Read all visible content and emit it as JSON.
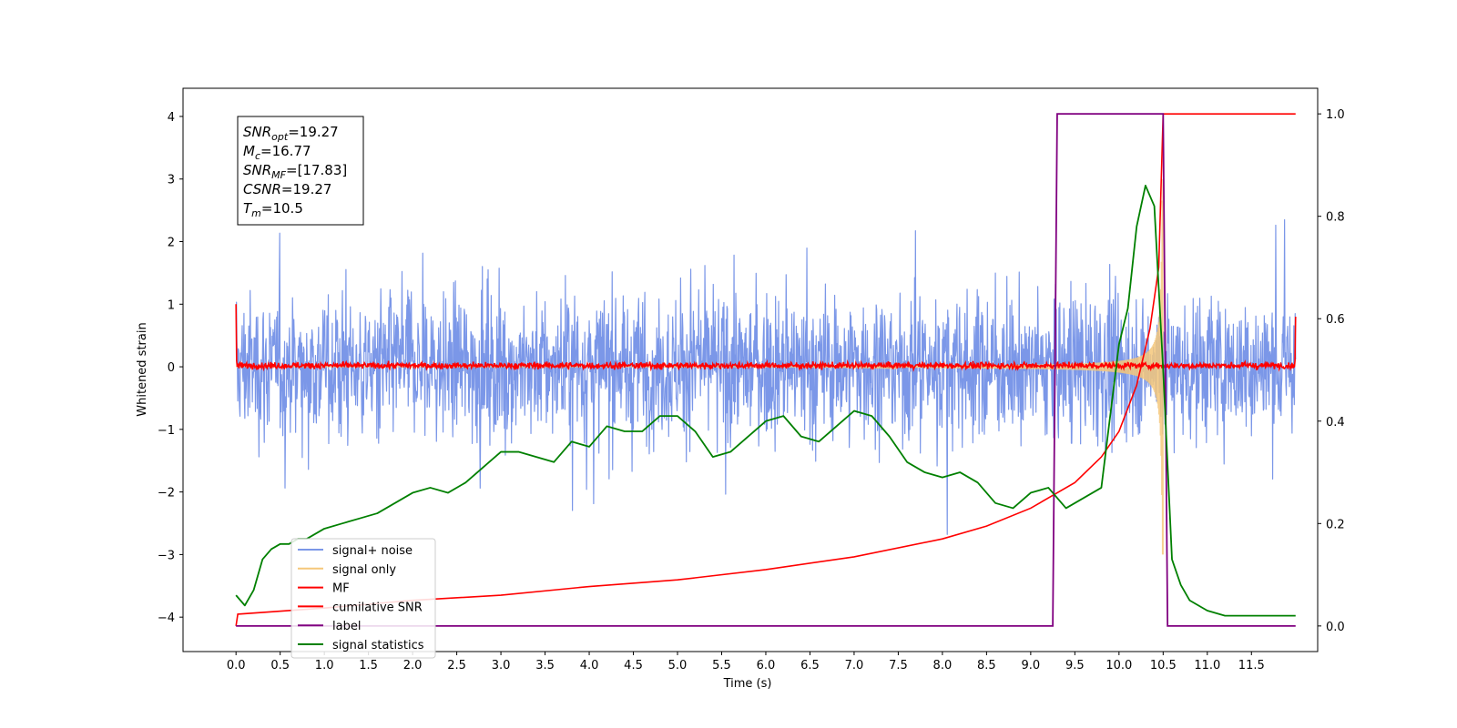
{
  "chart_data": {
    "type": "line",
    "title": "",
    "xlabel": "Time (s)",
    "ylabel": "Whitened strain",
    "xlim": [
      -0.6,
      12.25
    ],
    "ylim": [
      -4.55,
      4.45
    ],
    "y2lim": [
      -0.05,
      1.05
    ],
    "xticks": [
      0.0,
      0.5,
      1.0,
      1.5,
      2.0,
      2.5,
      3.0,
      3.5,
      4.0,
      4.5,
      5.0,
      5.5,
      6.0,
      6.5,
      7.0,
      7.5,
      8.0,
      8.5,
      9.0,
      9.5,
      10.0,
      10.5,
      11.0,
      11.5
    ],
    "xtick_labels": [
      "0.0",
      "0.5",
      "1.0",
      "1.5",
      "2.0",
      "2.5",
      "3.0",
      "3.5",
      "4.0",
      "4.5",
      "5.0",
      "5.5",
      "6.0",
      "6.5",
      "7.0",
      "7.5",
      "8.0",
      "8.5",
      "9.0",
      "9.5",
      "10.0",
      "10.5",
      "11.0",
      "11.5"
    ],
    "yticks": [
      -4,
      -3,
      -2,
      -1,
      0,
      1,
      2,
      3,
      4
    ],
    "ytick_labels": [
      "−4",
      "−3",
      "−2",
      "−1",
      "0",
      "1",
      "2",
      "3",
      "4"
    ],
    "y2ticks": [
      0.0,
      0.2,
      0.4,
      0.6,
      0.8,
      1.0
    ],
    "y2tick_labels": [
      "0.0",
      "0.2",
      "0.4",
      "0.6",
      "0.8",
      "1.0"
    ],
    "legend_position": "lower-left",
    "annotation": {
      "lines": [
        {
          "sym": "SNR",
          "sub": "opt",
          "rest": "=19.27"
        },
        {
          "sym": "M",
          "sub": "c",
          "rest": "=16.77"
        },
        {
          "sym": "SNR",
          "sub": "MF",
          "rest": "=[17.83]"
        },
        {
          "sym": "CSNR",
          "sub": "",
          "rest": "=19.27"
        },
        {
          "sym": "T",
          "sub": "m",
          "rest": "=10.5"
        }
      ]
    },
    "series": [
      {
        "name": "signal+ noise",
        "color": "#7b97e8",
        "axis": "left",
        "kind": "noise",
        "x_range": [
          0.0,
          12.0
        ],
        "envelope": [
          -2.0,
          2.1
        ],
        "peak_range": [
          -3.5,
          3.1
        ]
      },
      {
        "name": "signal only",
        "color": "#f5c77a",
        "axis": "left",
        "kind": "chirp",
        "x_range": [
          0.0,
          10.5
        ],
        "peak_amplitude": 3.0
      },
      {
        "name": "MF",
        "color": "#ff0000",
        "axis": "left",
        "kind": "noise",
        "x_range": [
          0.0,
          12.0
        ],
        "envelope": [
          -0.05,
          0.1
        ]
      },
      {
        "name": "cumilative SNR",
        "color": "#ff0000",
        "axis": "right",
        "x": [
          0.0,
          0.02,
          1.0,
          2.0,
          3.0,
          4.0,
          5.0,
          6.0,
          7.0,
          8.0,
          8.5,
          9.0,
          9.5,
          9.8,
          10.0,
          10.2,
          10.35,
          10.45,
          10.5,
          10.55,
          12.0
        ],
        "values": [
          0.0,
          0.023,
          0.035,
          0.05,
          0.06,
          0.077,
          0.09,
          0.11,
          0.135,
          0.17,
          0.195,
          0.23,
          0.28,
          0.33,
          0.38,
          0.47,
          0.58,
          0.7,
          1.0,
          1.0,
          1.0
        ]
      },
      {
        "name": "label",
        "color": "#800080",
        "axis": "right",
        "x": [
          0.0,
          9.25,
          9.3,
          10.5,
          10.55,
          12.0
        ],
        "values": [
          0.0,
          0.0,
          1.0,
          1.0,
          0.0,
          0.0
        ]
      },
      {
        "name": "signal statistics",
        "color": "#008000",
        "axis": "right",
        "x": [
          0.0,
          0.1,
          0.2,
          0.3,
          0.4,
          0.5,
          0.6,
          0.7,
          0.8,
          1.0,
          1.2,
          1.4,
          1.6,
          1.8,
          2.0,
          2.2,
          2.4,
          2.6,
          2.8,
          3.0,
          3.2,
          3.4,
          3.6,
          3.8,
          4.0,
          4.2,
          4.4,
          4.6,
          4.8,
          5.0,
          5.2,
          5.4,
          5.6,
          5.8,
          6.0,
          6.2,
          6.4,
          6.6,
          6.8,
          7.0,
          7.2,
          7.4,
          7.6,
          7.8,
          8.0,
          8.2,
          8.4,
          8.6,
          8.8,
          9.0,
          9.2,
          9.4,
          9.6,
          9.8,
          10.0,
          10.1,
          10.2,
          10.3,
          10.4,
          10.5,
          10.6,
          10.7,
          10.8,
          11.0,
          11.2,
          11.5,
          11.8,
          12.0
        ],
        "values": [
          0.06,
          0.04,
          0.07,
          0.13,
          0.15,
          0.16,
          0.16,
          0.17,
          0.17,
          0.19,
          0.2,
          0.21,
          0.22,
          0.24,
          0.26,
          0.27,
          0.26,
          0.28,
          0.31,
          0.34,
          0.34,
          0.33,
          0.32,
          0.36,
          0.35,
          0.39,
          0.38,
          0.38,
          0.41,
          0.41,
          0.38,
          0.33,
          0.34,
          0.37,
          0.4,
          0.41,
          0.37,
          0.36,
          0.39,
          0.42,
          0.41,
          0.37,
          0.32,
          0.3,
          0.29,
          0.3,
          0.28,
          0.24,
          0.23,
          0.26,
          0.27,
          0.23,
          0.25,
          0.27,
          0.55,
          0.62,
          0.78,
          0.86,
          0.82,
          0.5,
          0.13,
          0.08,
          0.05,
          0.03,
          0.02,
          0.02,
          0.02,
          0.02
        ]
      }
    ]
  }
}
